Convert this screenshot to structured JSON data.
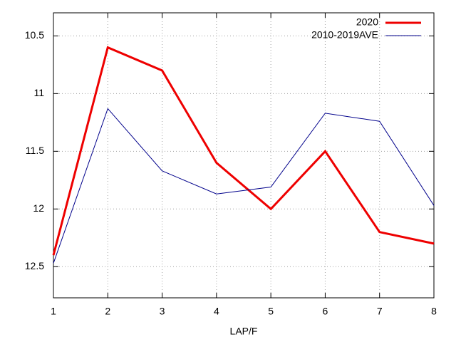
{
  "chart_data": {
    "type": "line",
    "x_label": "LAP/F",
    "x": [
      1,
      2,
      3,
      4,
      5,
      6,
      7,
      8
    ],
    "xlim": [
      1,
      8
    ],
    "xticks": [
      1,
      2,
      3,
      4,
      5,
      6,
      7,
      8
    ],
    "ylim": [
      10.3,
      12.77
    ],
    "yticks": [
      10.5,
      11,
      11.5,
      12,
      12.5
    ],
    "y_inverted": true,
    "grid": true,
    "legend": "top-right",
    "series": [
      {
        "name": "2020",
        "color": "#ee0000",
        "values": [
          12.4,
          10.6,
          10.8,
          11.6,
          12.0,
          11.5,
          12.2,
          12.3
        ]
      },
      {
        "name": "2010-2019AVE",
        "color": "#00008b",
        "values": [
          12.47,
          11.13,
          11.67,
          11.87,
          11.81,
          11.17,
          11.24,
          11.97
        ]
      }
    ]
  }
}
